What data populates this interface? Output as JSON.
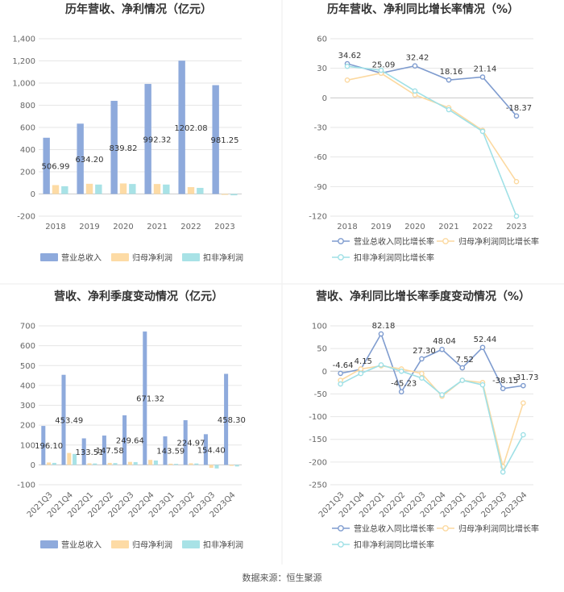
{
  "source": "数据来源：恒生聚源",
  "colors": {
    "revenue": "#8eaadc",
    "netprofit": "#fddba5",
    "deducted": "#a8e2e6"
  },
  "chart_data": [
    {
      "type": "bar",
      "title": "历年营收、净利情况（亿元）",
      "categories": [
        "2018",
        "2019",
        "2020",
        "2021",
        "2022",
        "2023"
      ],
      "ylim": [
        -200,
        1400
      ],
      "yticks": [
        "-200",
        "0",
        "200",
        "400",
        "600",
        "800",
        "1,000",
        "1,200",
        "1,400"
      ],
      "series": [
        {
          "name": "营业总收入",
          "values": [
            506.99,
            634.2,
            839.82,
            992.32,
            1202.08,
            981.25
          ],
          "labels": [
            "506.99",
            "634.20",
            "839.82",
            "992.32",
            "1202.08",
            "981.25"
          ]
        },
        {
          "name": "归母净利润",
          "values": [
            80,
            92,
            95,
            90,
            62,
            -8
          ]
        },
        {
          "name": "扣非净利润",
          "values": [
            70,
            85,
            90,
            85,
            55,
            -12
          ]
        }
      ]
    },
    {
      "type": "line",
      "title": "历年营收、净利同比增长率情况（%）",
      "categories": [
        "2018",
        "2019",
        "2020",
        "2021",
        "2022",
        "2023"
      ],
      "ylim": [
        -120,
        60
      ],
      "yticks": [
        "-120",
        "-90",
        "-60",
        "-30",
        "0",
        "30",
        "60"
      ],
      "series": [
        {
          "name": "营业总收入同比增长率",
          "values": [
            34.62,
            25.09,
            32.42,
            18.16,
            21.14,
            -18.37
          ],
          "labels": [
            "34.62",
            "25.09",
            "32.42",
            "18.16",
            "21.14",
            "-18.37"
          ]
        },
        {
          "name": "归母净利润同比增长率",
          "values": [
            18,
            25,
            3,
            -10,
            -33,
            -85
          ]
        },
        {
          "name": "扣非净利润同比增长率",
          "values": [
            32,
            28,
            7,
            -12,
            -34,
            -120
          ]
        }
      ]
    },
    {
      "type": "bar",
      "title": "营收、净利季度变动情况（亿元）",
      "categories": [
        "2021Q3",
        "2021Q4",
        "2022Q1",
        "2022Q2",
        "2022Q3",
        "2022Q4",
        "2023Q1",
        "2023Q2",
        "2023Q3",
        "2023Q4"
      ],
      "ylim": [
        -100,
        700
      ],
      "yticks": [
        "-100",
        "0",
        "100",
        "200",
        "300",
        "400",
        "500",
        "600",
        "700"
      ],
      "series": [
        {
          "name": "营业总收入",
          "values": [
            196.1,
            453.49,
            133.51,
            147.58,
            249.64,
            671.32,
            143.59,
            224.97,
            154.4,
            458.3
          ],
          "labels": [
            "196.10",
            "453.49",
            "133.51",
            "147.58",
            "249.64",
            "671.32",
            "143.59",
            "224.97",
            "154.40",
            "458.30"
          ]
        },
        {
          "name": "归母净利润",
          "values": [
            12,
            60,
            8,
            10,
            15,
            25,
            6,
            8,
            -15,
            -5
          ]
        },
        {
          "name": "扣非净利润",
          "values": [
            10,
            55,
            7,
            9,
            14,
            22,
            5,
            7,
            -18,
            -8
          ]
        }
      ]
    },
    {
      "type": "line",
      "title": "营收、净利同比增长率季度变动情况（%）",
      "categories": [
        "2021Q3",
        "2021Q4",
        "2022Q1",
        "2022Q2",
        "2022Q3",
        "2022Q4",
        "2023Q1",
        "2023Q2",
        "2023Q3",
        "2023Q4"
      ],
      "ylim": [
        -250,
        100
      ],
      "yticks": [
        "-250",
        "-200",
        "-150",
        "-100",
        "-50",
        "0",
        "50",
        "100"
      ],
      "series": [
        {
          "name": "营业总收入同比增长率",
          "values": [
            -4.64,
            4.15,
            82.18,
            -45.23,
            27.3,
            48.04,
            7.52,
            52.44,
            -38.15,
            -31.73
          ],
          "labels": [
            "-4.64",
            "4.15",
            "82.18",
            "-45.23",
            "27.30",
            "48.04",
            "7.52",
            "52.44",
            "-38.15",
            "-31.73"
          ]
        },
        {
          "name": "归母净利润同比增长率",
          "values": [
            -20,
            5,
            12,
            5,
            -5,
            -55,
            -20,
            -25,
            -210,
            -70
          ]
        },
        {
          "name": "扣非净利润同比增长率",
          "values": [
            -28,
            -5,
            14,
            0,
            -15,
            -52,
            -20,
            -30,
            -222,
            -140
          ]
        }
      ]
    }
  ]
}
